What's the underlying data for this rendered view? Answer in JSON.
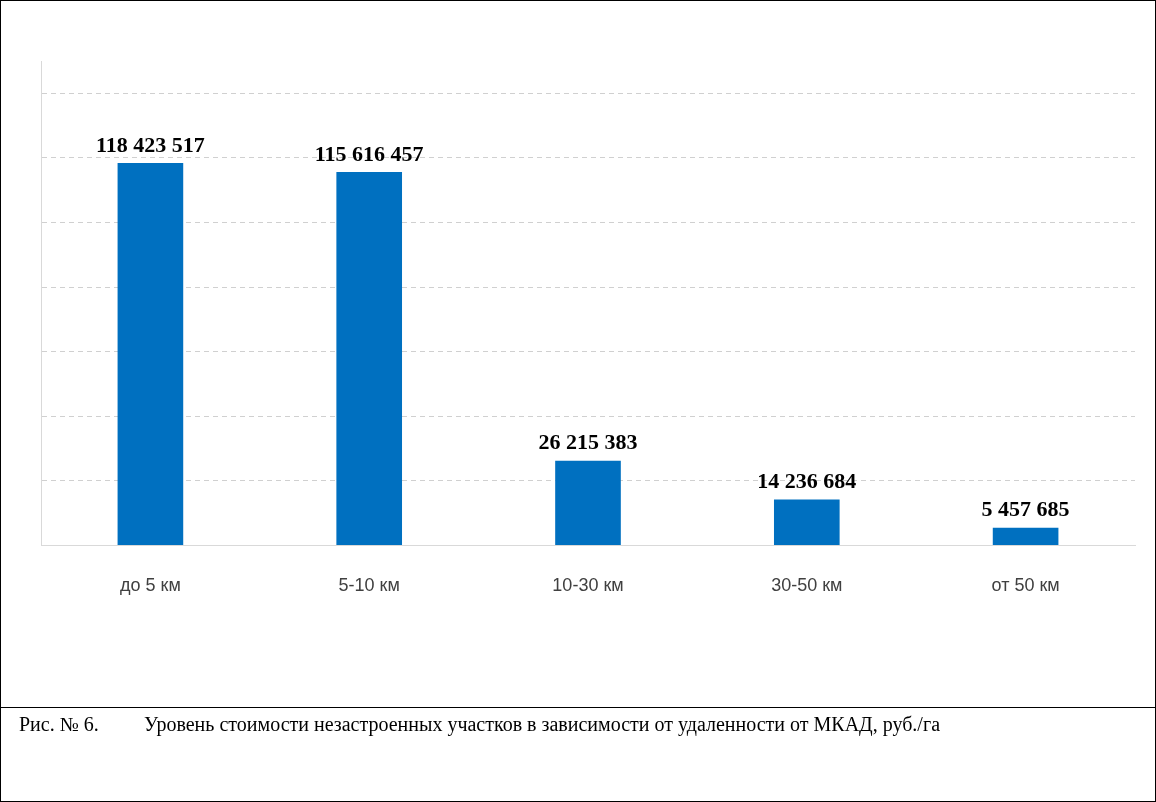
{
  "chart_data": {
    "type": "bar",
    "categories": [
      "до 5 км",
      "5-10 км",
      "10-30 км",
      "30-50 км",
      "от 50 км"
    ],
    "values": [
      118423517,
      115616457,
      26215383,
      14236684,
      5457685
    ],
    "value_labels": [
      "118 423 517",
      "115 616 457",
      "26 215 383",
      "14 236 684",
      "5 457 685"
    ],
    "color": "#0070c0",
    "ylim": [
      0,
      150000000
    ],
    "yticks": [
      {
        "value": 0,
        "label": null
      },
      {
        "value": 20000000,
        "label": null
      },
      {
        "value": 40000000,
        "label": null
      },
      {
        "value": 60000000,
        "label": null
      },
      {
        "value": 80000000,
        "label": null
      },
      {
        "value": 100000000,
        "label": null
      },
      {
        "value": 120000000,
        "label": null
      },
      {
        "value": 140000000,
        "label": null
      }
    ],
    "tick_labels": "x",
    "grid": "y",
    "legend": false,
    "annotations": [
      "Рис. № 6.\tУровень стоимости незастроенных участков в зависимости от удаленности от МКАД, руб./га"
    ]
  }
}
